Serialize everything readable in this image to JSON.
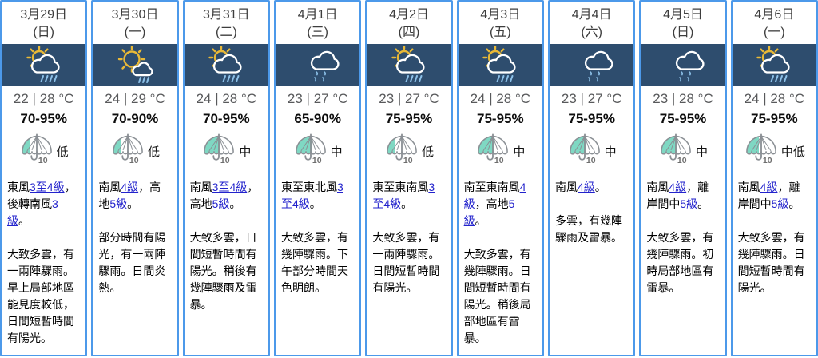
{
  "colors": {
    "card_border": "#4c99ea",
    "icon_band": "#2e4d6e",
    "link": "#2222cc",
    "psr_teal": "#7fd8c3",
    "umbrella_gray": "#8a8f94",
    "sun_yellow": "#e9b937",
    "rain_blue": "#8cc0e8",
    "cloud_white": "#ffffff",
    "temp_gray": "#58595b"
  },
  "columns": [
    {
      "date": "3月29日",
      "weekday": "(日)",
      "icon": "sun-cloud-rain",
      "temperature": "22 | 28 °C",
      "humidity": "70-95%",
      "psr": {
        "label": "低",
        "fill": 0.28
      },
      "wind": [
        {
          "text": "東風"
        },
        {
          "text": "3至4級",
          "link": true
        },
        {
          "text": "，後轉南風"
        },
        {
          "text": "3級",
          "link": true
        },
        {
          "text": "。"
        }
      ],
      "description": "大致多雲，有一兩陣驟雨。早上局部地區能見度較低，日間短暫時間有陽光。"
    },
    {
      "date": "3月30日",
      "weekday": "(一)",
      "icon": "sun-few-showers",
      "temperature": "24 | 29 °C",
      "humidity": "70-90%",
      "psr": {
        "label": "低",
        "fill": 0.28
      },
      "wind": [
        {
          "text": "南風"
        },
        {
          "text": "4級",
          "link": true
        },
        {
          "text": "，高地"
        },
        {
          "text": "5級",
          "link": true
        },
        {
          "text": "。"
        }
      ],
      "description": "部分時間有陽光，有一兩陣驟雨。日間炎熱。"
    },
    {
      "date": "3月31日",
      "weekday": "(二)",
      "icon": "sun-cloud-rain",
      "temperature": "24 | 28 °C",
      "humidity": "70-95%",
      "psr": {
        "label": "中",
        "fill": 0.55
      },
      "wind": [
        {
          "text": "南風"
        },
        {
          "text": "3至4級",
          "link": true
        },
        {
          "text": "，高地"
        },
        {
          "text": "5級",
          "link": true
        },
        {
          "text": "。"
        }
      ],
      "description": "大致多雲，日間短暫時間有陽光。稍後有幾陣驟雨及雷暴。"
    },
    {
      "date": "4月1日",
      "weekday": "(三)",
      "icon": "cloud-drizzle",
      "temperature": "23 | 27 °C",
      "humidity": "65-90%",
      "psr": {
        "label": "中",
        "fill": 0.55
      },
      "wind": [
        {
          "text": "東至東北風"
        },
        {
          "text": "3至4級",
          "link": true
        },
        {
          "text": "。"
        }
      ],
      "description": "大致多雲，有幾陣驟雨。下午部分時間天色明朗。"
    },
    {
      "date": "4月2日",
      "weekday": "(四)",
      "icon": "sun-cloud-rain",
      "temperature": "23 | 27 °C",
      "humidity": "75-95%",
      "psr": {
        "label": "低",
        "fill": 0.28
      },
      "wind": [
        {
          "text": "東至東南風"
        },
        {
          "text": "3至4級",
          "link": true
        },
        {
          "text": "。"
        }
      ],
      "description": "大致多雲，有一兩陣驟雨。日間短暫時間有陽光。"
    },
    {
      "date": "4月3日",
      "weekday": "(五)",
      "icon": "sun-cloud-rain",
      "temperature": "24 | 28 °C",
      "humidity": "75-95%",
      "psr": {
        "label": "中",
        "fill": 0.55
      },
      "wind": [
        {
          "text": "南至東南風"
        },
        {
          "text": "4級",
          "link": true
        },
        {
          "text": "，高地"
        },
        {
          "text": "5級",
          "link": true
        },
        {
          "text": "。"
        }
      ],
      "description": "大致多雲，有幾陣驟雨。日間短暫時間有陽光。稍後局部地區有雷暴。"
    },
    {
      "date": "4月4日",
      "weekday": "(六)",
      "icon": "cloud-drizzle",
      "temperature": "23 | 27 °C",
      "humidity": "75-95%",
      "psr": {
        "label": "中",
        "fill": 0.55
      },
      "wind": [
        {
          "text": "南風"
        },
        {
          "text": "4級",
          "link": true
        },
        {
          "text": "。"
        }
      ],
      "description": "多雲，有幾陣驟雨及雷暴。"
    },
    {
      "date": "4月5日",
      "weekday": "(日)",
      "icon": "cloud-drizzle",
      "temperature": "23 | 28 °C",
      "humidity": "75-95%",
      "psr": {
        "label": "中",
        "fill": 0.55
      },
      "wind": [
        {
          "text": "南風"
        },
        {
          "text": "4級",
          "link": true
        },
        {
          "text": "，離岸間中"
        },
        {
          "text": "5級",
          "link": true
        },
        {
          "text": "。"
        }
      ],
      "description": "大致多雲，有幾陣驟雨。初時局部地區有雷暴。"
    },
    {
      "date": "4月6日",
      "weekday": "(一)",
      "icon": "sun-cloud-rain",
      "temperature": "24 | 28 °C",
      "humidity": "75-95%",
      "psr": {
        "label": "中低",
        "fill": 0.42
      },
      "wind": [
        {
          "text": "南風"
        },
        {
          "text": "4級",
          "link": true
        },
        {
          "text": "，離岸間中"
        },
        {
          "text": "5級",
          "link": true
        },
        {
          "text": "。"
        }
      ],
      "description": "大致多雲，有幾陣驟雨。日間短暫時間有陽光。"
    }
  ]
}
